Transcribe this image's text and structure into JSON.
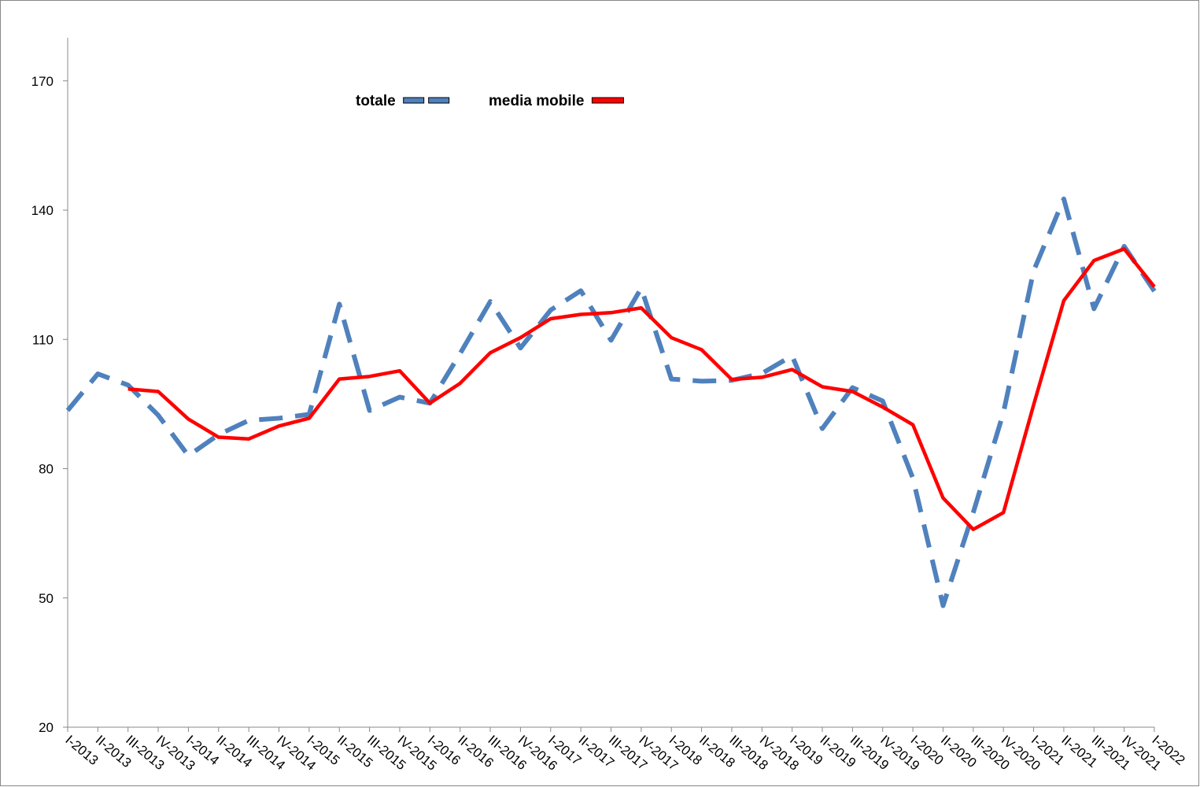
{
  "chart_data": {
    "type": "line",
    "categories": [
      "I-2013",
      "II-2013",
      "III-2013",
      "IV-2013",
      "I-2014",
      "II-2014",
      "III-2014",
      "IV-2014",
      "I-2015",
      "II-2015",
      "III-2015",
      "IV-2015",
      "I-2016",
      "II-2016",
      "III-2016",
      "IV-2016",
      "I-2017",
      "II-2017",
      "III-2017",
      "IV-2017",
      "I-2018",
      "II-2018",
      "III-2018",
      "IV-2018",
      "I-2019",
      "II-2019",
      "III-2019",
      "IV-2019",
      "I-2020",
      "II-2020",
      "III-2020",
      "IV-2020",
      "I-2021",
      "II-2021",
      "III-2021",
      "IV-2021",
      "I-2022"
    ],
    "series": [
      {
        "name": "totale",
        "color": "#4f81bd",
        "dashed": true,
        "values": [
          93.5,
          102,
          99.4,
          92.4,
          83,
          87.9,
          91.2,
          91.7,
          92.6,
          118.2,
          93.5,
          96.6,
          95.2,
          106.7,
          118.8,
          108,
          116.8,
          121.3,
          109.8,
          121.9,
          100.8,
          100.3,
          100.5,
          102.1,
          106.2,
          89.3,
          98.8,
          95.7,
          77.8,
          48.2,
          69.8,
          93,
          125.9,
          142.6,
          117.1,
          131.6,
          121.2
        ]
      },
      {
        "name": "media mobile",
        "color": "#ff0000",
        "dashed": false,
        "values": [
          null,
          null,
          98.5,
          97.9,
          91.5,
          87.3,
          86.9,
          89.9,
          91.7,
          100.8,
          101.4,
          102.7,
          95.2,
          99.8,
          106.9,
          110.4,
          114.8,
          115.8,
          116.2,
          117.3,
          110.4,
          107.6,
          100.7,
          101.2,
          103,
          99,
          97.9,
          94.3,
          90.2,
          73.2,
          65.9,
          69.8,
          94.8,
          119,
          128.3,
          131,
          122.2
        ]
      }
    ],
    "ylim": [
      20,
      180
    ],
    "yticks": [
      20,
      50,
      80,
      110,
      140,
      170
    ]
  }
}
